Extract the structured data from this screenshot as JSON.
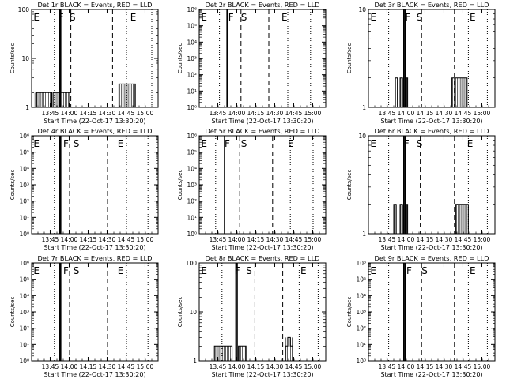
{
  "figure": {
    "xlabel": "Start Time (22-Oct-17 13:30:20)",
    "ylabel": "Counts/sec",
    "xticks": [
      "13:45",
      "14:00",
      "14:15",
      "14:30",
      "14:45",
      "15:00"
    ],
    "xtick_minutes": [
      14.67,
      29.67,
      44.67,
      59.67,
      74.67,
      89.67
    ],
    "xlim": [
      0,
      100
    ],
    "events_color": "#000000",
    "lld_color": "#ff0000"
  },
  "chart_data": [
    {
      "type": "line",
      "title": "Det 1r BLACK = Events, RED = LLD",
      "yscale": "log",
      "ylim": [
        1,
        100
      ],
      "yticks": [
        {
          "v": 1,
          "label": "1"
        },
        {
          "v": 10,
          "label": "10"
        },
        {
          "v": 100,
          "label": "100"
        }
      ],
      "markers": [
        {
          "label": "E",
          "x": 1.5
        },
        {
          "label": "F",
          "x": 21
        },
        {
          "label": "S",
          "x": 30
        },
        {
          "label": "E",
          "x": 78
        }
      ],
      "vlines": [
        {
          "x": 18,
          "style": "dotted"
        },
        {
          "x": 22,
          "style": "solid"
        },
        {
          "x": 23,
          "style": "solid"
        },
        {
          "x": 31,
          "style": "dashed"
        },
        {
          "x": 64,
          "style": "dashed"
        },
        {
          "x": 75,
          "style": "dotted"
        },
        {
          "x": 95,
          "style": "dotted"
        }
      ],
      "series": [
        {
          "segments": [
            [
              [
                2,
                1
              ],
              [
                4,
                1
              ],
              [
                4,
                2
              ],
              [
                16,
                2
              ],
              [
                16,
                1
              ],
              [
                17,
                1
              ],
              [
                17,
                2
              ],
              [
                30,
                2
              ],
              [
                30,
                1
              ],
              [
                31,
                1
              ]
            ],
            [
              [
                69,
                1
              ],
              [
                69,
                3
              ],
              [
                82,
                3
              ],
              [
                82,
                1
              ]
            ]
          ]
        }
      ]
    },
    {
      "type": "line",
      "title": "Det 2r BLACK = Events, RED = LLD",
      "yscale": "log",
      "ylim": [
        1,
        1000000
      ],
      "yticks": [
        {
          "v": 1,
          "label": "10⁰"
        },
        {
          "v": 10,
          "label": "10¹"
        },
        {
          "v": 100,
          "label": "10²"
        },
        {
          "v": 1000,
          "label": "10³"
        },
        {
          "v": 10000,
          "label": "10⁴"
        },
        {
          "v": 100000,
          "label": "10⁵"
        },
        {
          "v": 1000000,
          "label": "10⁶"
        }
      ],
      "markers": [
        {
          "label": "E",
          "x": 1.5
        },
        {
          "label": "F",
          "x": 23
        },
        {
          "label": "S",
          "x": 33
        },
        {
          "label": "E",
          "x": 65
        }
      ],
      "vlines": [
        {
          "x": 16,
          "style": "dotted"
        },
        {
          "x": 22,
          "style": "solid"
        },
        {
          "x": 33,
          "style": "dashed"
        },
        {
          "x": 55,
          "style": "dashed"
        },
        {
          "x": 70,
          "style": "dotted"
        },
        {
          "x": 88,
          "style": "dotted"
        }
      ],
      "series": []
    },
    {
      "type": "line",
      "title": "Det 3r BLACK = Events, RED = LLD",
      "yscale": "log",
      "ylim": [
        1,
        10
      ],
      "yticks": [
        {
          "v": 1,
          "label": "1"
        },
        {
          "v": 10,
          "label": "10"
        }
      ],
      "markers": [
        {
          "label": "E",
          "x": 1.5
        },
        {
          "label": "F",
          "x": 29
        },
        {
          "label": "S",
          "x": 38
        },
        {
          "label": "E",
          "x": 80
        }
      ],
      "vlines": [
        {
          "x": 16,
          "style": "dotted"
        },
        {
          "x": 28,
          "style": "solid"
        },
        {
          "x": 29,
          "style": "solid"
        },
        {
          "x": 42,
          "style": "dashed"
        },
        {
          "x": 68,
          "style": "dashed"
        },
        {
          "x": 79,
          "style": "dotted"
        },
        {
          "x": 94,
          "style": "dotted"
        }
      ],
      "series": [
        {
          "segments": [
            [
              [
                21,
                1
              ],
              [
                21,
                2
              ],
              [
                23,
                2
              ],
              [
                23,
                1
              ]
            ],
            [
              [
                25,
                1
              ],
              [
                25,
                2
              ],
              [
                27,
                2
              ],
              [
                27,
                1
              ]
            ],
            [
              [
                30,
                1
              ],
              [
                30,
                2
              ],
              [
                31,
                2
              ],
              [
                31,
                1
              ]
            ],
            [
              [
                66,
                1
              ],
              [
                66,
                2
              ],
              [
                78,
                2
              ],
              [
                78,
                1
              ]
            ]
          ]
        }
      ]
    },
    {
      "type": "line",
      "title": "Det 4r BLACK = Events, RED = LLD",
      "yscale": "log",
      "ylim": [
        1,
        1000000
      ],
      "yticks": [
        {
          "v": 1,
          "label": "10⁰"
        },
        {
          "v": 10,
          "label": "10¹"
        },
        {
          "v": 100,
          "label": "10²"
        },
        {
          "v": 1000,
          "label": "10³"
        },
        {
          "v": 10000,
          "label": "10⁴"
        },
        {
          "v": 100000,
          "label": "10⁵"
        },
        {
          "v": 1000000,
          "label": "10⁶"
        }
      ],
      "markers": [
        {
          "label": "E",
          "x": 1.5
        },
        {
          "label": "F",
          "x": 25
        },
        {
          "label": "S",
          "x": 33
        },
        {
          "label": "E",
          "x": 68
        }
      ],
      "vlines": [
        {
          "x": 18,
          "style": "dotted"
        },
        {
          "x": 22,
          "style": "solid"
        },
        {
          "x": 23,
          "style": "solid"
        },
        {
          "x": 30,
          "style": "dashed"
        },
        {
          "x": 60,
          "style": "dashed"
        },
        {
          "x": 75,
          "style": "dotted"
        },
        {
          "x": 92,
          "style": "dotted"
        }
      ],
      "series": []
    },
    {
      "type": "line",
      "title": "Det 5r BLACK = Events, RED = LLD",
      "yscale": "log",
      "ylim": [
        1,
        1000000
      ],
      "yticks": [
        {
          "v": 1,
          "label": "10⁰"
        },
        {
          "v": 10,
          "label": "10¹"
        },
        {
          "v": 100,
          "label": "10²"
        },
        {
          "v": 1000,
          "label": "10³"
        },
        {
          "v": 10000,
          "label": "10⁴"
        },
        {
          "v": 100000,
          "label": "10⁵"
        },
        {
          "v": 1000000,
          "label": "10⁶"
        }
      ],
      "markers": [
        {
          "label": "E",
          "x": 1.5
        },
        {
          "label": "F",
          "x": 20
        },
        {
          "label": "S",
          "x": 33
        },
        {
          "label": "E",
          "x": 70
        }
      ],
      "vlines": [
        {
          "x": 13,
          "style": "dotted"
        },
        {
          "x": 20,
          "style": "solid"
        },
        {
          "x": 32,
          "style": "dashed"
        },
        {
          "x": 58,
          "style": "dashed"
        },
        {
          "x": 72,
          "style": "dotted"
        },
        {
          "x": 90,
          "style": "dotted"
        }
      ],
      "series": []
    },
    {
      "type": "line",
      "title": "Det 6r BLACK = Events, RED = LLD",
      "yscale": "log",
      "ylim": [
        1,
        10
      ],
      "yticks": [
        {
          "v": 1,
          "label": "1"
        },
        {
          "v": 10,
          "label": "10"
        }
      ],
      "markers": [
        {
          "label": "E",
          "x": 1.5
        },
        {
          "label": "F",
          "x": 28
        },
        {
          "label": "S",
          "x": 38
        },
        {
          "label": "E",
          "x": 78
        }
      ],
      "vlines": [
        {
          "x": 16,
          "style": "dotted"
        },
        {
          "x": 28,
          "style": "solid"
        },
        {
          "x": 29,
          "style": "solid"
        },
        {
          "x": 41,
          "style": "dashed"
        },
        {
          "x": 68,
          "style": "dashed"
        },
        {
          "x": 79,
          "style": "dotted"
        },
        {
          "x": 94,
          "style": "dotted"
        }
      ],
      "series": [
        {
          "segments": [
            [
              [
                20,
                1
              ],
              [
                20,
                2
              ],
              [
                22,
                2
              ],
              [
                22,
                1
              ]
            ],
            [
              [
                25,
                1
              ],
              [
                25,
                2
              ],
              [
                27,
                2
              ],
              [
                27,
                1
              ]
            ],
            [
              [
                30,
                1
              ],
              [
                30,
                2
              ],
              [
                31,
                2
              ],
              [
                31,
                1
              ]
            ],
            [
              [
                69,
                1
              ],
              [
                69,
                2
              ],
              [
                79,
                2
              ],
              [
                79,
                1
              ]
            ]
          ]
        }
      ]
    },
    {
      "type": "line",
      "title": "Det 7r BLACK = Events, RED = LLD",
      "yscale": "log",
      "ylim": [
        1,
        1000000
      ],
      "yticks": [
        {
          "v": 1,
          "label": "10⁰"
        },
        {
          "v": 10,
          "label": "10¹"
        },
        {
          "v": 100,
          "label": "10²"
        },
        {
          "v": 1000,
          "label": "10³"
        },
        {
          "v": 10000,
          "label": "10⁴"
        },
        {
          "v": 100000,
          "label": "10⁵"
        },
        {
          "v": 1000000,
          "label": "10⁶"
        }
      ],
      "markers": [
        {
          "label": "E",
          "x": 1.5
        },
        {
          "label": "F",
          "x": 25
        },
        {
          "label": "S",
          "x": 33
        },
        {
          "label": "E",
          "x": 68
        }
      ],
      "vlines": [
        {
          "x": 18,
          "style": "dotted"
        },
        {
          "x": 22,
          "style": "solid"
        },
        {
          "x": 23,
          "style": "solid"
        },
        {
          "x": 30,
          "style": "dashed"
        },
        {
          "x": 60,
          "style": "dashed"
        },
        {
          "x": 75,
          "style": "dotted"
        },
        {
          "x": 92,
          "style": "dotted"
        }
      ],
      "series": []
    },
    {
      "type": "line",
      "title": "Det 8r BLACK = Events, RED = LLD",
      "yscale": "log",
      "ylim": [
        1,
        100
      ],
      "yticks": [
        {
          "v": 1,
          "label": "1"
        },
        {
          "v": 10,
          "label": "10"
        },
        {
          "v": 100,
          "label": "100"
        }
      ],
      "markers": [
        {
          "label": "E",
          "x": 1.5
        },
        {
          "label": "F",
          "x": 28
        },
        {
          "label": "S",
          "x": 37
        },
        {
          "label": "E",
          "x": 80
        }
      ],
      "vlines": [
        {
          "x": 18,
          "style": "dotted"
        },
        {
          "x": 29,
          "style": "solid"
        },
        {
          "x": 30,
          "style": "solid"
        },
        {
          "x": 44,
          "style": "dashed"
        },
        {
          "x": 66,
          "style": "dashed"
        },
        {
          "x": 79,
          "style": "dotted"
        },
        {
          "x": 94,
          "style": "dotted"
        }
      ],
      "series": [
        {
          "segments": [
            [
              [
                12,
                1
              ],
              [
                12,
                2
              ],
              [
                26,
                2
              ],
              [
                26,
                1
              ]
            ],
            [
              [
                31,
                1
              ],
              [
                31,
                2
              ],
              [
                37,
                2
              ],
              [
                37,
                1
              ]
            ],
            [
              [
                68,
                1
              ],
              [
                68,
                2
              ],
              [
                70,
                2
              ],
              [
                70,
                3
              ],
              [
                72,
                3
              ],
              [
                72,
                2
              ],
              [
                74,
                2
              ],
              [
                74,
                1
              ]
            ]
          ]
        }
      ]
    },
    {
      "type": "line",
      "title": "Det 9r BLACK = Events, RED = LLD",
      "yscale": "log",
      "ylim": [
        1,
        1000000
      ],
      "yticks": [
        {
          "v": 1,
          "label": "10⁰"
        },
        {
          "v": 10,
          "label": "10¹"
        },
        {
          "v": 100,
          "label": "10²"
        },
        {
          "v": 1000,
          "label": "10³"
        },
        {
          "v": 10000,
          "label": "10⁴"
        },
        {
          "v": 100000,
          "label": "10⁵"
        },
        {
          "v": 1000000,
          "label": "10⁶"
        }
      ],
      "markers": [
        {
          "label": "E",
          "x": 1.5
        },
        {
          "label": "F",
          "x": 30
        },
        {
          "label": "S",
          "x": 42
        },
        {
          "label": "E",
          "x": 80
        }
      ],
      "vlines": [
        {
          "x": 16,
          "style": "dotted"
        },
        {
          "x": 28,
          "style": "solid"
        },
        {
          "x": 29,
          "style": "solid"
        },
        {
          "x": 42,
          "style": "dashed"
        },
        {
          "x": 68,
          "style": "dashed"
        },
        {
          "x": 79,
          "style": "dotted"
        },
        {
          "x": 94,
          "style": "dotted"
        }
      ],
      "series": []
    }
  ]
}
